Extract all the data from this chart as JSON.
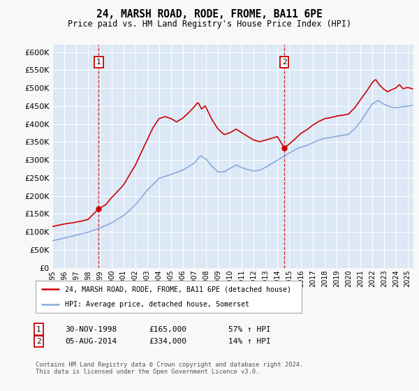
{
  "title": "24, MARSH ROAD, RODE, FROME, BA11 6PE",
  "subtitle": "Price paid vs. HM Land Registry's House Price Index (HPI)",
  "ylim": [
    0,
    620000
  ],
  "yticks": [
    0,
    50000,
    100000,
    150000,
    200000,
    250000,
    300000,
    350000,
    400000,
    450000,
    500000,
    550000,
    600000
  ],
  "sale1": {
    "date_num": 1998.917,
    "price": 165000,
    "label": "1",
    "date_str": "30-NOV-1998",
    "amount": "£165,000",
    "hpi_change": "57% ↑ HPI"
  },
  "sale2": {
    "date_num": 2014.583,
    "price": 334000,
    "label": "2",
    "date_str": "05-AUG-2014",
    "amount": "£334,000",
    "hpi_change": "14% ↑ HPI"
  },
  "line1_label": "24, MARSH ROAD, RODE, FROME, BA11 6PE (detached house)",
  "line2_label": "HPI: Average price, detached house, Somerset",
  "line1_color": "#cc0000",
  "line2_color": "#88aadd",
  "plot_bg": "#dce8f5",
  "fig_bg": "#f8f8f8",
  "footer": "Contains HM Land Registry data © Crown copyright and database right 2024.\nThis data is licensed under the Open Government Licence v3.0.",
  "xmin": 1995.0,
  "xmax": 2025.5,
  "hpi_curve": [
    [
      1995.0,
      75000
    ],
    [
      1996.0,
      82000
    ],
    [
      1997.0,
      90000
    ],
    [
      1998.0,
      98000
    ],
    [
      1999.0,
      110000
    ],
    [
      2000.0,
      125000
    ],
    [
      2001.0,
      145000
    ],
    [
      2002.0,
      175000
    ],
    [
      2003.0,
      215000
    ],
    [
      2004.0,
      248000
    ],
    [
      2005.0,
      258000
    ],
    [
      2006.0,
      270000
    ],
    [
      2007.0,
      290000
    ],
    [
      2007.5,
      310000
    ],
    [
      2008.0,
      300000
    ],
    [
      2008.5,
      280000
    ],
    [
      2009.0,
      265000
    ],
    [
      2009.5,
      265000
    ],
    [
      2010.0,
      275000
    ],
    [
      2010.5,
      285000
    ],
    [
      2011.0,
      278000
    ],
    [
      2011.5,
      272000
    ],
    [
      2012.0,
      268000
    ],
    [
      2012.5,
      270000
    ],
    [
      2013.0,
      278000
    ],
    [
      2013.5,
      288000
    ],
    [
      2014.0,
      298000
    ],
    [
      2014.5,
      308000
    ],
    [
      2015.0,
      318000
    ],
    [
      2015.5,
      328000
    ],
    [
      2016.0,
      335000
    ],
    [
      2016.5,
      340000
    ],
    [
      2017.0,
      348000
    ],
    [
      2017.5,
      355000
    ],
    [
      2018.0,
      360000
    ],
    [
      2018.5,
      362000
    ],
    [
      2019.0,
      365000
    ],
    [
      2019.5,
      368000
    ],
    [
      2020.0,
      370000
    ],
    [
      2020.5,
      385000
    ],
    [
      2021.0,
      405000
    ],
    [
      2021.5,
      430000
    ],
    [
      2022.0,
      455000
    ],
    [
      2022.5,
      465000
    ],
    [
      2023.0,
      455000
    ],
    [
      2023.5,
      448000
    ],
    [
      2024.0,
      445000
    ],
    [
      2024.5,
      448000
    ],
    [
      2025.0,
      450000
    ],
    [
      2025.4,
      452000
    ]
  ],
  "prop_curve": [
    [
      1995.0,
      115000
    ],
    [
      1996.0,
      122000
    ],
    [
      1997.0,
      128000
    ],
    [
      1998.0,
      135000
    ],
    [
      1998.917,
      165000
    ],
    [
      1999.5,
      175000
    ],
    [
      2000.0,
      195000
    ],
    [
      2001.0,
      230000
    ],
    [
      2002.0,
      285000
    ],
    [
      2003.0,
      355000
    ],
    [
      2003.5,
      390000
    ],
    [
      2004.0,
      415000
    ],
    [
      2004.5,
      420000
    ],
    [
      2005.0,
      415000
    ],
    [
      2005.5,
      405000
    ],
    [
      2006.0,
      415000
    ],
    [
      2006.5,
      430000
    ],
    [
      2007.0,
      448000
    ],
    [
      2007.3,
      460000
    ],
    [
      2007.6,
      440000
    ],
    [
      2007.9,
      450000
    ],
    [
      2008.2,
      430000
    ],
    [
      2008.5,
      410000
    ],
    [
      2009.0,
      385000
    ],
    [
      2009.5,
      370000
    ],
    [
      2010.0,
      375000
    ],
    [
      2010.5,
      385000
    ],
    [
      2011.0,
      375000
    ],
    [
      2011.5,
      365000
    ],
    [
      2012.0,
      355000
    ],
    [
      2012.5,
      350000
    ],
    [
      2013.0,
      355000
    ],
    [
      2013.5,
      360000
    ],
    [
      2014.0,
      365000
    ],
    [
      2014.583,
      334000
    ],
    [
      2015.0,
      345000
    ],
    [
      2015.5,
      360000
    ],
    [
      2016.0,
      375000
    ],
    [
      2016.5,
      385000
    ],
    [
      2017.0,
      398000
    ],
    [
      2017.5,
      408000
    ],
    [
      2018.0,
      415000
    ],
    [
      2018.5,
      418000
    ],
    [
      2019.0,
      422000
    ],
    [
      2019.5,
      425000
    ],
    [
      2020.0,
      428000
    ],
    [
      2020.5,
      445000
    ],
    [
      2021.0,
      468000
    ],
    [
      2021.5,
      490000
    ],
    [
      2022.0,
      515000
    ],
    [
      2022.3,
      525000
    ],
    [
      2022.6,
      510000
    ],
    [
      2022.9,
      500000
    ],
    [
      2023.3,
      490000
    ],
    [
      2023.6,
      495000
    ],
    [
      2024.0,
      500000
    ],
    [
      2024.3,
      510000
    ],
    [
      2024.6,
      498000
    ],
    [
      2025.0,
      502000
    ],
    [
      2025.4,
      498000
    ]
  ]
}
